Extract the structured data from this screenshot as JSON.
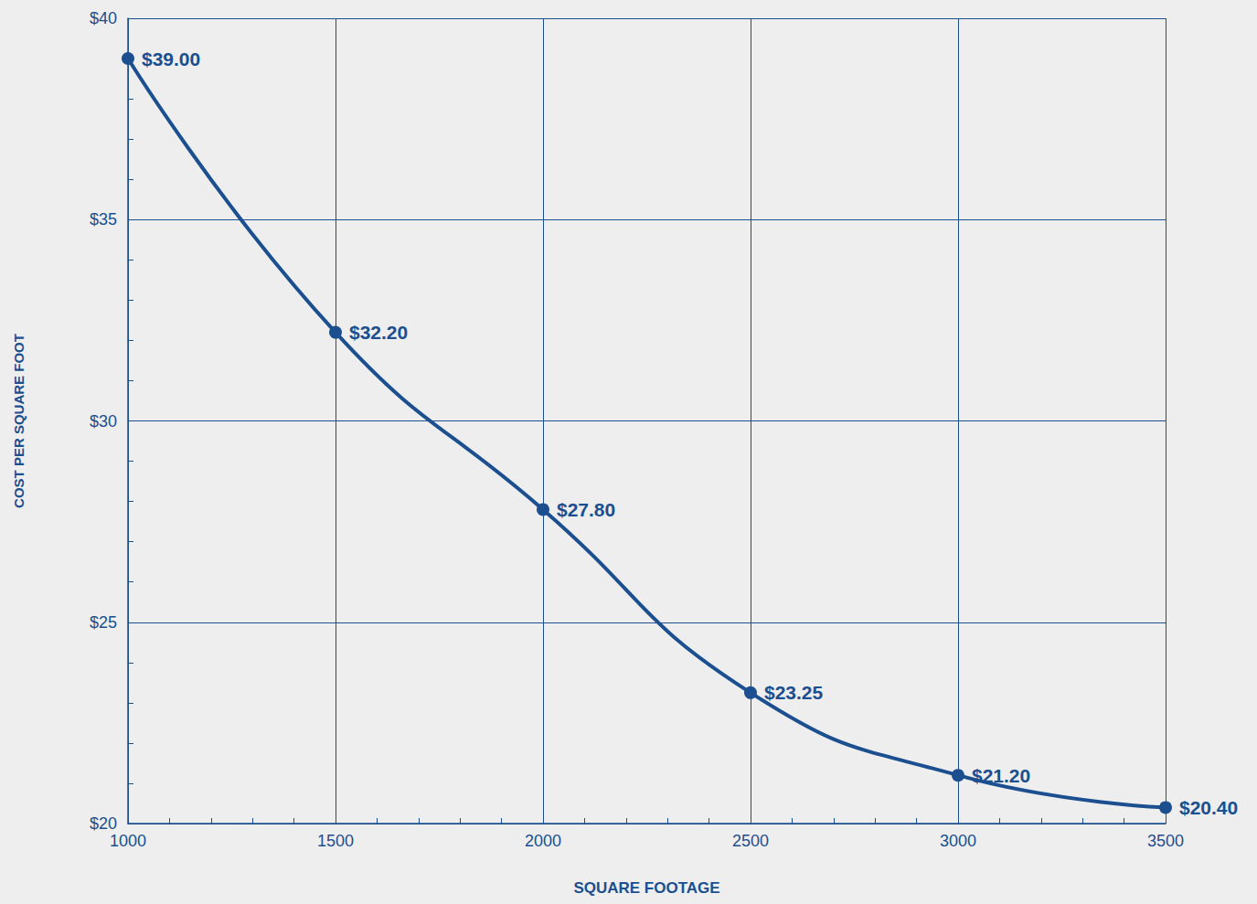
{
  "chart_data": {
    "type": "line",
    "x_label": "SQUARE FOOTAGE",
    "y_label": "COST PER SQUARE FOOT",
    "x": [
      1000,
      1500,
      2000,
      2500,
      3000,
      3500
    ],
    "values": [
      39.0,
      32.2,
      27.8,
      23.25,
      21.2,
      20.4
    ],
    "value_labels": [
      "$39.00",
      "$32.20",
      "$27.80",
      "$23.25",
      "$21.20",
      "$20.40"
    ],
    "color": "#1b4f8f",
    "xlim": [
      1000,
      3500
    ],
    "xticks": [
      1000,
      1500,
      2000,
      2500,
      3000,
      3500
    ],
    "ylim": [
      20,
      40
    ],
    "yticks": [
      {
        "value": 20,
        "label": "$20"
      },
      {
        "value": 25,
        "label": "$25"
      },
      {
        "value": 30,
        "label": "$30"
      },
      {
        "value": 35,
        "label": "$35"
      },
      {
        "value": 40,
        "label": "$40"
      }
    ],
    "grid": true,
    "data_labels": true,
    "marker": "circle",
    "line_style": "solid"
  }
}
